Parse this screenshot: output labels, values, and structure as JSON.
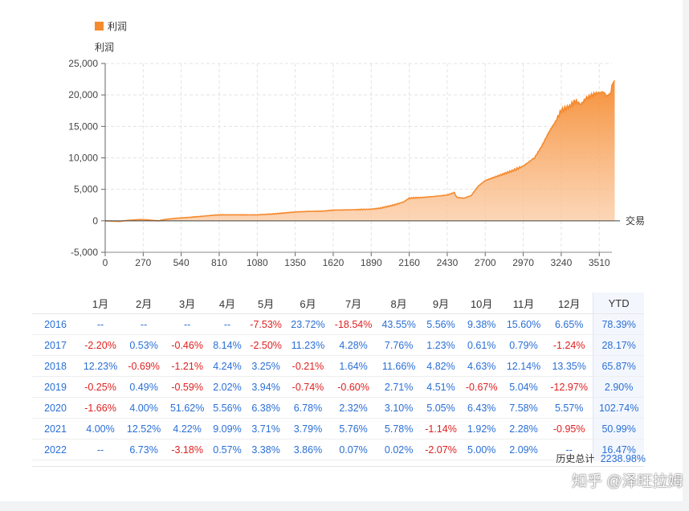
{
  "chart_data": {
    "type": "area",
    "legend": "利润",
    "ylabel": "利润",
    "xlabel": "交易",
    "series_color": "#f58a2e",
    "legend_placement": "top-left",
    "grid": true,
    "ylim": [
      -5000,
      25000
    ],
    "xlim": [
      0,
      3600
    ],
    "y_ticks": [
      "25,000",
      "20,000",
      "15,000",
      "10,000",
      "5,000",
      "0",
      "-5,000"
    ],
    "x_ticks": [
      "0",
      "270",
      "540",
      "810",
      "1080",
      "1350",
      "1620",
      "1890",
      "2160",
      "2430",
      "2700",
      "2970",
      "3240",
      "3510"
    ],
    "points": [
      [
        0,
        0
      ],
      [
        100,
        -100
      ],
      [
        150,
        50
      ],
      [
        250,
        200
      ],
      [
        300,
        150
      ],
      [
        380,
        0
      ],
      [
        420,
        200
      ],
      [
        500,
        400
      ],
      [
        600,
        550
      ],
      [
        680,
        700
      ],
      [
        750,
        850
      ],
      [
        810,
        950
      ],
      [
        900,
        950
      ],
      [
        1000,
        950
      ],
      [
        1080,
        950
      ],
      [
        1200,
        1100
      ],
      [
        1300,
        1300
      ],
      [
        1350,
        1400
      ],
      [
        1450,
        1500
      ],
      [
        1550,
        1550
      ],
      [
        1620,
        1700
      ],
      [
        1750,
        1750
      ],
      [
        1890,
        1850
      ],
      [
        1950,
        2000
      ],
      [
        2050,
        2500
      ],
      [
        2120,
        3000
      ],
      [
        2160,
        3600
      ],
      [
        2250,
        3700
      ],
      [
        2350,
        3900
      ],
      [
        2430,
        4100
      ],
      [
        2480,
        4500
      ],
      [
        2500,
        3700
      ],
      [
        2550,
        3600
      ],
      [
        2600,
        4000
      ],
      [
        2650,
        5500
      ],
      [
        2700,
        6400
      ],
      [
        2800,
        7200
      ],
      [
        2900,
        8000
      ],
      [
        2970,
        8700
      ],
      [
        3050,
        10000
      ],
      [
        3100,
        11800
      ],
      [
        3150,
        14000
      ],
      [
        3200,
        15800
      ],
      [
        3240,
        17500
      ],
      [
        3300,
        18200
      ],
      [
        3340,
        19000
      ],
      [
        3380,
        18500
      ],
      [
        3420,
        19500
      ],
      [
        3480,
        20200
      ],
      [
        3540,
        20500
      ],
      [
        3560,
        19800
      ],
      [
        3590,
        20200
      ],
      [
        3600,
        21500
      ],
      [
        3620,
        22300
      ]
    ]
  },
  "table": {
    "headers": [
      "",
      "1月",
      "2月",
      "3月",
      "4月",
      "5月",
      "6月",
      "7月",
      "8月",
      "9月",
      "10月",
      "11月",
      "12月",
      "YTD"
    ],
    "rows": [
      {
        "year": "2016",
        "cells": [
          "--",
          "--",
          "--",
          "--",
          "-7.53%",
          "23.72%",
          "-18.54%",
          "43.55%",
          "5.56%",
          "9.38%",
          "15.60%",
          "6.65%"
        ],
        "ytd": "78.39%"
      },
      {
        "year": "2017",
        "cells": [
          "-2.20%",
          "0.53%",
          "-0.46%",
          "8.14%",
          "-2.50%",
          "11.23%",
          "4.28%",
          "7.76%",
          "1.23%",
          "0.61%",
          "0.79%",
          "-1.24%"
        ],
        "ytd": "28.17%"
      },
      {
        "year": "2018",
        "cells": [
          "12.23%",
          "-0.69%",
          "-1.21%",
          "4.24%",
          "3.25%",
          "-0.21%",
          "1.64%",
          "11.66%",
          "4.82%",
          "4.63%",
          "12.14%",
          "13.35%"
        ],
        "ytd": "65.87%"
      },
      {
        "year": "2019",
        "cells": [
          "-0.25%",
          "0.49%",
          "-0.59%",
          "2.02%",
          "3.94%",
          "-0.74%",
          "-0.60%",
          "2.71%",
          "4.51%",
          "-0.67%",
          "5.04%",
          "-12.97%"
        ],
        "ytd": "2.90%"
      },
      {
        "year": "2020",
        "cells": [
          "-1.66%",
          "4.00%",
          "51.62%",
          "5.56%",
          "6.38%",
          "6.78%",
          "2.32%",
          "3.10%",
          "5.05%",
          "6.43%",
          "7.58%",
          "5.57%"
        ],
        "ytd": "102.74%"
      },
      {
        "year": "2021",
        "cells": [
          "4.00%",
          "12.52%",
          "4.22%",
          "9.09%",
          "3.71%",
          "3.79%",
          "5.76%",
          "5.78%",
          "-1.14%",
          "1.92%",
          "2.28%",
          "-0.95%"
        ],
        "ytd": "50.99%"
      },
      {
        "year": "2022",
        "cells": [
          "--",
          "6.73%",
          "-3.18%",
          "0.57%",
          "3.38%",
          "3.86%",
          "0.07%",
          "0.02%",
          "-2.07%",
          "5.00%",
          "2.09%",
          "--"
        ],
        "ytd": "16.47%"
      }
    ],
    "total_label": "历史总计",
    "total_value": "2238.98%"
  },
  "watermark": "知乎 @泽旺拉姆"
}
